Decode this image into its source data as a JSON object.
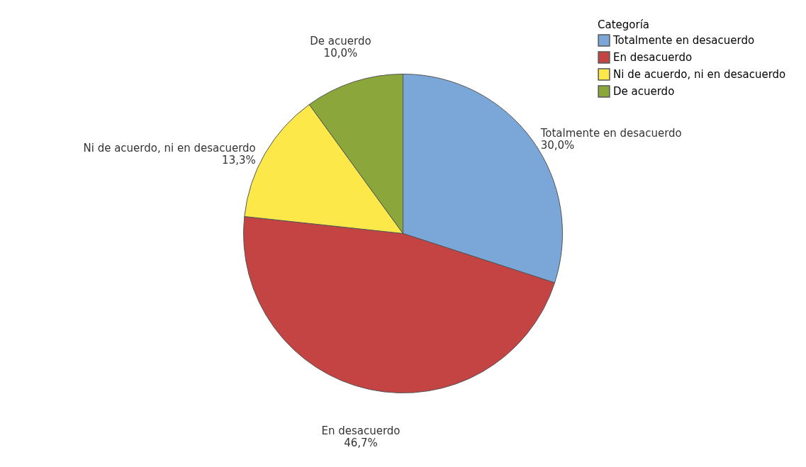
{
  "chart_data": {
    "type": "pie",
    "categories": [
      "Totalmente en desacuerdo",
      "En desacuerdo",
      "Ni de acuerdo, ni en desacuerdo",
      "De acuerdo"
    ],
    "values": [
      30.0,
      46.7,
      13.3,
      10.0
    ],
    "colors": [
      "#7ba6d8",
      "#c44444",
      "#fde84a",
      "#8ba63a"
    ],
    "value_labels": [
      "30,0%",
      "46,7%",
      "13,3%",
      "10,0%"
    ],
    "legend_title": "Categoría",
    "legend": "top right"
  }
}
